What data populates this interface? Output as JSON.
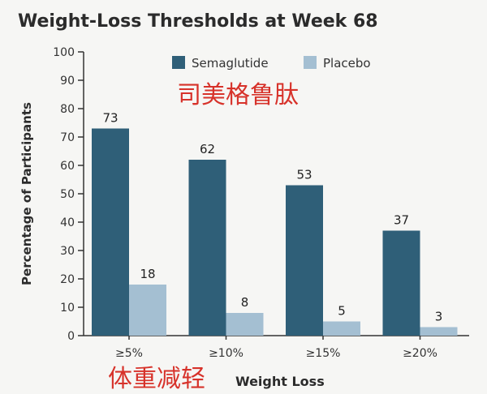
{
  "colors": {
    "semaglutide": "#2f5f78",
    "placebo": "#a4bfd2",
    "annotation": "#d7322a",
    "background": "#f6f6f4"
  },
  "chart_data": {
    "type": "bar",
    "title": "Weight-Loss Thresholds at Week 68",
    "xlabel": "Weight Loss",
    "ylabel": "Percentage of Participants",
    "ylim": [
      0,
      100
    ],
    "yticks": [
      0,
      10,
      20,
      30,
      40,
      50,
      60,
      70,
      80,
      90,
      100
    ],
    "categories": [
      "≥5%",
      "≥10%",
      "≥15%",
      "≥20%"
    ],
    "series": [
      {
        "name": "Semaglutide",
        "values": [
          73,
          62,
          53,
          37
        ]
      },
      {
        "name": "Placebo",
        "values": [
          18,
          8,
          5,
          3
        ]
      }
    ],
    "legend_position": "top-right",
    "grid": false,
    "annotations": {
      "top": "司美格鲁肽",
      "bottom": "体重减轻"
    }
  }
}
